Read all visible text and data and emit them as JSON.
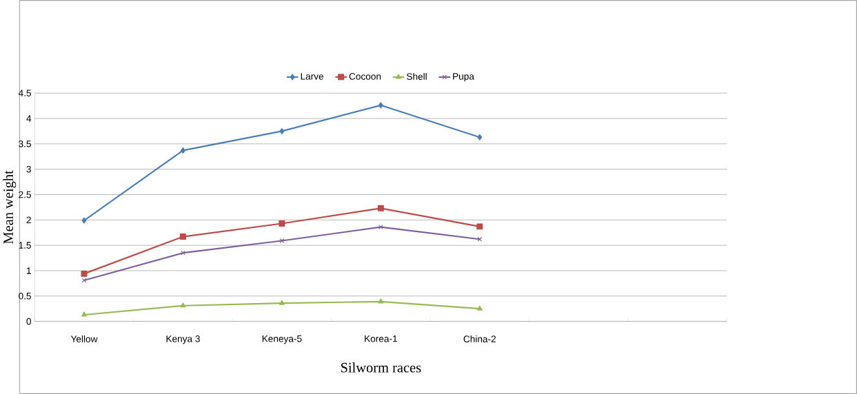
{
  "chart_data": {
    "type": "line",
    "xlabel": "Silworm  races",
    "ylabel": "Mean weight",
    "categories": [
      "Yellow",
      "Kenya 3",
      "Keneya-5",
      "Korea-1",
      "China-2",
      null,
      null
    ],
    "series": [
      {
        "name": "Larve",
        "color": "#4a7ebb",
        "marker": "diamond",
        "values": [
          1.99,
          3.37,
          3.75,
          4.26,
          3.63,
          null,
          null
        ]
      },
      {
        "name": "Cocoon",
        "color": "#be4b48",
        "marker": "square",
        "values": [
          0.94,
          1.67,
          1.93,
          2.23,
          1.87,
          null,
          null
        ]
      },
      {
        "name": "Shell",
        "color": "#98b954",
        "marker": "triangle",
        "values": [
          0.13,
          0.31,
          0.36,
          0.39,
          0.25,
          null,
          null
        ]
      },
      {
        "name": "Pupa",
        "color": "#7d5fa0",
        "marker": "cross",
        "values": [
          0.81,
          1.35,
          1.59,
          1.86,
          1.62,
          null,
          null
        ]
      }
    ],
    "ylim": [
      0,
      4.5
    ],
    "yticks": [
      0,
      0.5,
      1,
      1.5,
      2,
      2.5,
      3,
      3.5,
      4,
      4.5
    ],
    "grid": "y",
    "legend": "top"
  }
}
